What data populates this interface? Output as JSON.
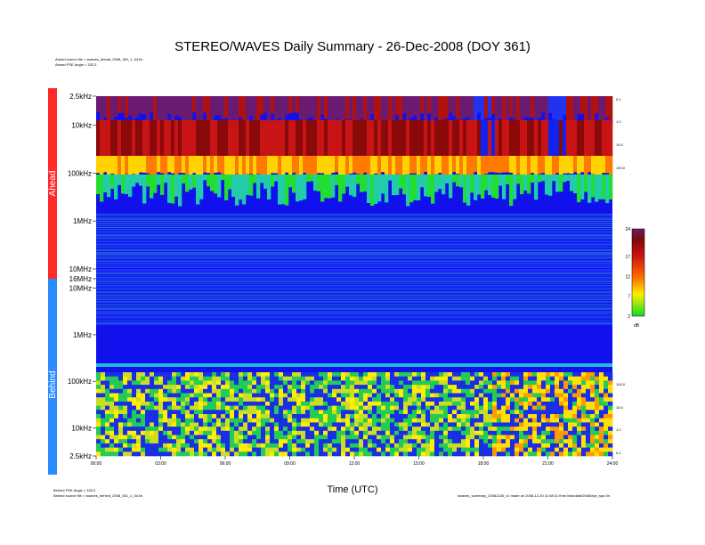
{
  "title": "STEREO/WAVES Daily Summary - 26-Dec-2008 (DOY 361)",
  "header_notes": {
    "ahead_source": "Ahead source file = swaves_ahead_2008_361_1_04.lin",
    "ahead_pse": "Ahead PSE Angle = 333.3"
  },
  "footer_notes": {
    "behind_pse": "Behind PSE Angle = 333.3",
    "behind_source": "Behind source file = swaves_behind_2008_361_1_04.lin",
    "credits": "swaves_summary_20081226_v1 made on 2008-12-30 11:48:31 from lists/data/2008/dyn_spc/ lin"
  },
  "colors": {
    "ahead_band": "#ff2a2a",
    "behind_band": "#2a8cff",
    "background": "#1111ee"
  },
  "chart_data": {
    "type": "heatmap",
    "title": "STEREO/WAVES Daily Summary - 26-Dec-2008 (DOY 361)",
    "xlabel": "Time (UTC)",
    "x_ticks": [
      "00:00",
      "03:00",
      "06:00",
      "09:00",
      "12:00",
      "15:00",
      "18:00",
      "21:00",
      "24:00"
    ],
    "xlim_hours": [
      0,
      24
    ],
    "panels": [
      {
        "name": "Ahead",
        "y_ticks": [
          "2.5kHz",
          "10kHz",
          "100kHz",
          "1MHz",
          "10MHz",
          "16MHz"
        ],
        "right_ticks": [
          "0.1",
          "1.0",
          "10.0",
          "100.0"
        ],
        "ylim_hz": [
          2500,
          16000000
        ],
        "log_scale": true
      },
      {
        "name": "Behind",
        "y_ticks": [
          "10MHz",
          "1MHz",
          "100kHz",
          "10kHz",
          "2.5kHz"
        ],
        "right_ticks": [
          "100.0",
          "10.0",
          "1.0",
          "0.1"
        ],
        "ylim_hz": [
          2500,
          16000000
        ],
        "log_scale": true
      }
    ],
    "colorbar": {
      "label": "dB",
      "ticks": [
        2,
        7,
        12,
        17,
        24
      ],
      "range": [
        2,
        24
      ]
    }
  }
}
